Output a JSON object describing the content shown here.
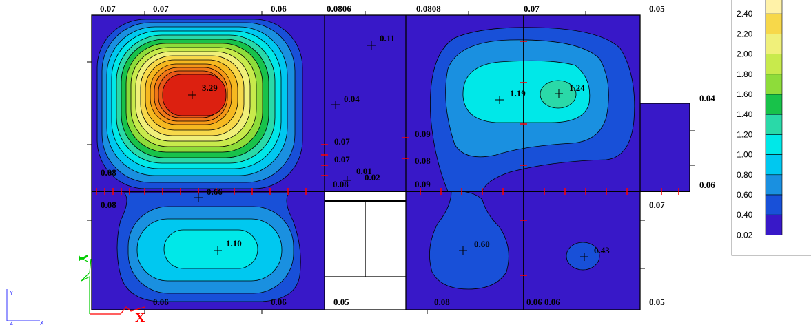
{
  "legend": {
    "levels": [
      {
        "label": "2.40",
        "color": "#fff2a8",
        "partial": true
      },
      {
        "label": "2.20",
        "color": "#f7d84a"
      },
      {
        "label": "2.00",
        "color": "#f0f07a"
      },
      {
        "label": "1.80",
        "color": "#c8ea4c"
      },
      {
        "label": "1.60",
        "color": "#8edc3a"
      },
      {
        "label": "1.40",
        "color": "#18c24a"
      },
      {
        "label": "1.20",
        "color": "#2ad9a8"
      },
      {
        "label": "1.00",
        "color": "#00e8e8"
      },
      {
        "label": "0.80",
        "color": "#00c8f0"
      },
      {
        "label": "0.60",
        "color": "#1a90e0"
      },
      {
        "label": "0.40",
        "color": "#1850d8"
      },
      {
        "label": "0.02",
        "color": "#3818c8"
      }
    ]
  },
  "labels": {
    "top": [
      "0.07",
      "0.07",
      "0.06",
      "0.0806",
      "0.0808",
      "0.07",
      "0.05"
    ],
    "right": [
      "0.04",
      "0.06",
      "0.07",
      "0.05"
    ],
    "bottom": [
      "0.06",
      "0.06",
      "0.05",
      "0.08",
      "0.06 0.06"
    ],
    "peaks": [
      "3.29",
      "1.10",
      "0.11",
      "0.04",
      "0.07",
      "0.07",
      "0.01",
      "0.02",
      "0.08",
      "1.19",
      "1.24",
      "0.60",
      "0.43",
      "0.09",
      "0.08",
      "0.09",
      "0.66",
      "0.08",
      "0.08"
    ]
  },
  "axis": {
    "y": "Y",
    "x": "X",
    "z": "Z",
    "y_big": "Y",
    "x_big": "X"
  },
  "colors": {
    "bg_field": "#3818c8",
    "outline": "#000000",
    "tick": "#ff0000",
    "axis_green": "#00cc00",
    "axis_red": "#ff0000"
  }
}
